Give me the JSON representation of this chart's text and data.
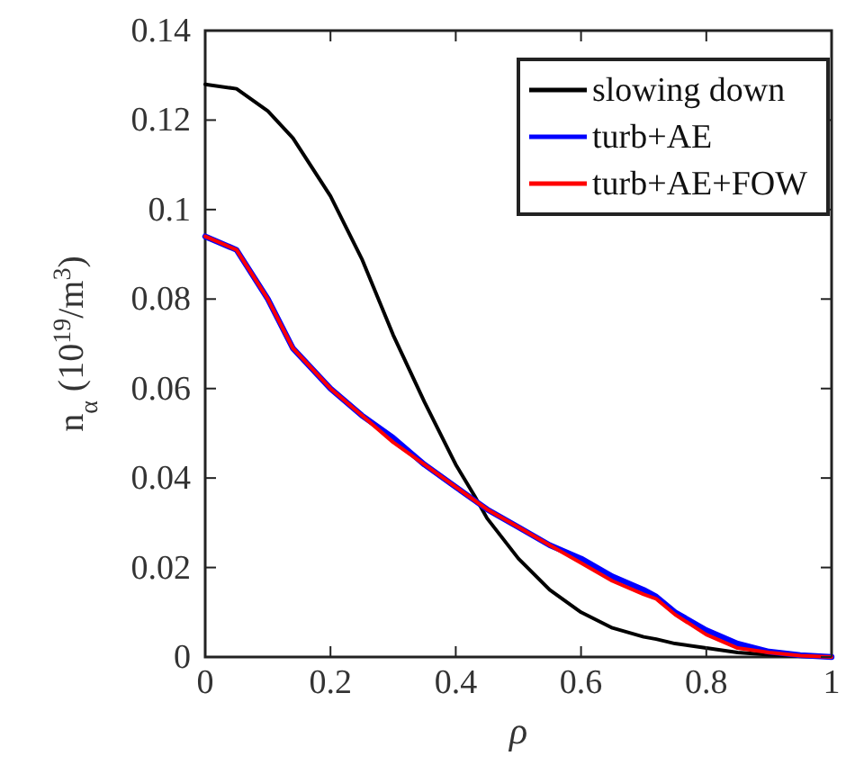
{
  "chart_data": {
    "type": "line",
    "xlabel": "ρ",
    "ylabel": "n$_{α}$ (10$^{19}$/m$^{3}$)",
    "xlim": [
      0,
      1
    ],
    "ylim": [
      0,
      0.14
    ],
    "xticks": [
      0,
      0.2,
      0.4,
      0.6,
      0.8,
      1
    ],
    "yticks": [
      0,
      0.02,
      0.04,
      0.06,
      0.08,
      0.1,
      0.12,
      0.14
    ],
    "legend": "top right",
    "grid": false,
    "x": [
      0,
      0.05,
      0.1,
      0.14,
      0.2,
      0.25,
      0.3,
      0.35,
      0.4,
      0.43,
      0.45,
      0.5,
      0.55,
      0.6,
      0.65,
      0.7,
      0.72,
      0.75,
      0.8,
      0.85,
      0.9,
      0.95,
      1
    ],
    "series": [
      {
        "name": "slowing down",
        "color": "#000000",
        "values": [
          0.128,
          0.127,
          0.122,
          0.116,
          0.103,
          0.089,
          0.072,
          0.057,
          0.043,
          0.036,
          0.031,
          0.022,
          0.015,
          0.01,
          0.0065,
          0.0045,
          0.004,
          0.003,
          0.002,
          0.001,
          0.0005,
          0.0002,
          0
        ]
      },
      {
        "name": "turb+AE",
        "color": "#0000ff",
        "values": [
          0.094,
          0.091,
          0.08,
          0.069,
          0.06,
          0.054,
          0.049,
          0.043,
          0.038,
          0.035,
          0.033,
          0.029,
          0.025,
          0.022,
          0.018,
          0.015,
          0.0135,
          0.01,
          0.006,
          0.003,
          0.0012,
          0.0004,
          0
        ]
      },
      {
        "name": "turb+AE+FOW",
        "color": "#ff0000",
        "values": [
          0.094,
          0.091,
          0.08,
          0.069,
          0.06,
          0.054,
          0.048,
          0.043,
          0.038,
          0.035,
          0.033,
          0.029,
          0.025,
          0.021,
          0.017,
          0.014,
          0.013,
          0.0095,
          0.005,
          0.002,
          0.001,
          0.0003,
          0
        ]
      }
    ]
  }
}
